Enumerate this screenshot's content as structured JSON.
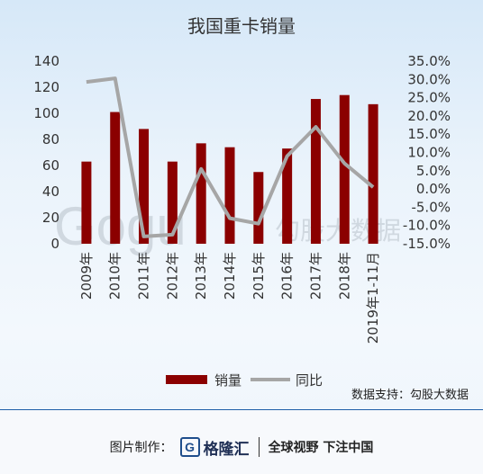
{
  "chart_data": {
    "type": "bar",
    "title": "我国重卡销量",
    "categories": [
      "2009年",
      "2010年",
      "2011年",
      "2012年",
      "2013年",
      "2014年",
      "2015年",
      "2016年",
      "2017年",
      "2018年",
      "2019年1-11月"
    ],
    "series": [
      {
        "name": "销量",
        "type": "bar",
        "axis": "left",
        "color": "#8b0000",
        "values": [
          63,
          101,
          88,
          63,
          77,
          74,
          55,
          73,
          111,
          114,
          107
        ]
      },
      {
        "name": "同比",
        "type": "line",
        "axis": "right",
        "color": "#a6a6a6",
        "values": [
          29.3,
          30.3,
          -13.0,
          -12.5,
          5.5,
          -8.0,
          -9.5,
          9.0,
          17.0,
          7.0,
          0.5
        ]
      }
    ],
    "left_axis": {
      "ylim": [
        0,
        140
      ],
      "ticks": [
        0,
        20,
        40,
        60,
        80,
        100,
        120,
        140
      ]
    },
    "right_axis": {
      "ylim": [
        -15,
        35
      ],
      "ticks": [
        "35.0%",
        "30.0%",
        "25.0%",
        "20.0%",
        "15.0%",
        "10.0%",
        "5.0%",
        "0.0%",
        "-5.0%",
        "-10.0%",
        "-15.0%"
      ]
    },
    "legend": {
      "position": "bottom",
      "bar_label": "销量",
      "line_label": "同比"
    },
    "grid": false
  },
  "source_text": "数据支持：勾股大数据",
  "watermark": {
    "logo_text": "Gogu",
    "text": "勾股大数据"
  },
  "footer": {
    "made_by_label": "图片制作：",
    "brand_mark": "G",
    "brand_name": "格隆汇",
    "slogan": "全球视野 下注中国"
  }
}
